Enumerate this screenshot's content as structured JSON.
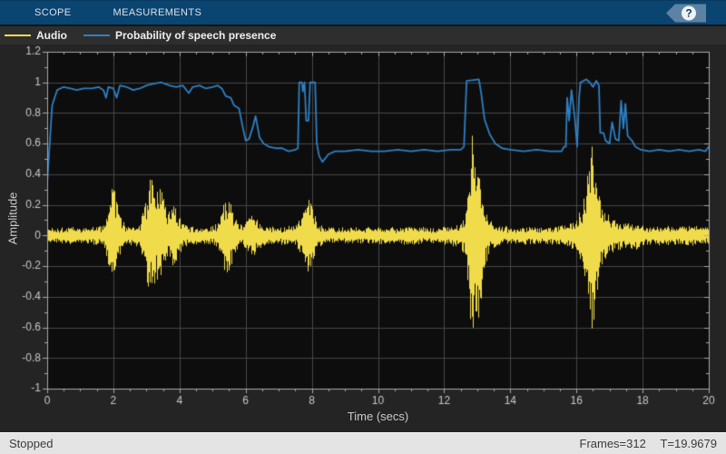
{
  "toolbar": {
    "tabs": [
      {
        "label": "SCOPE"
      },
      {
        "label": "MEASUREMENTS"
      }
    ],
    "help_icon": "?"
  },
  "legend": {
    "items": [
      {
        "label": "Audio",
        "color": "#f0dc4b"
      },
      {
        "label": "Probability of speech presence",
        "color": "#2e80c4"
      }
    ]
  },
  "status_bar": {
    "state": "Stopped",
    "frames": "Frames=312",
    "time": "T=19.9679"
  },
  "chart_data": {
    "type": "line",
    "xlabel": "Time (secs)",
    "ylabel": "Amplitude",
    "xlim": [
      0,
      20
    ],
    "ylim": [
      -1,
      1.2
    ],
    "grid": true,
    "legend_position": "top-left-bar",
    "x_ticks": [
      {
        "v": 0,
        "label": "0"
      },
      {
        "v": 2,
        "label": "2"
      },
      {
        "v": 4,
        "label": "4"
      },
      {
        "v": 6,
        "label": "6"
      },
      {
        "v": 8,
        "label": "8"
      },
      {
        "v": 10,
        "label": "10"
      },
      {
        "v": 12,
        "label": "12"
      },
      {
        "v": 14,
        "label": "14"
      },
      {
        "v": 16,
        "label": "16"
      },
      {
        "v": 18,
        "label": "18"
      },
      {
        "v": 20,
        "label": "20"
      }
    ],
    "y_ticks": [
      {
        "v": -1,
        "label": "-1"
      },
      {
        "v": -0.8,
        "label": "-0.8"
      },
      {
        "v": -0.6,
        "label": "-0.6"
      },
      {
        "v": -0.4,
        "label": "-0.4"
      },
      {
        "v": -0.2,
        "label": "-0.2"
      },
      {
        "v": 0,
        "label": "0"
      },
      {
        "v": 0.2,
        "label": "0.2"
      },
      {
        "v": 0.4,
        "label": "0.4"
      },
      {
        "v": 0.6,
        "label": "0.6"
      },
      {
        "v": 0.8,
        "label": "0.8"
      },
      {
        "v": 1,
        "label": "1"
      },
      {
        "v": 1.2,
        "label": "1.2"
      }
    ],
    "x_minor_step": 0.5,
    "y_minor_step": 0.1,
    "colors": {
      "plot_bg": "#0d0d0d",
      "grid": "#474747",
      "axis_box": "#a9a9a9",
      "tick_label": "#c9c9c9"
    },
    "series": [
      {
        "name": "Audio",
        "color": "#f0dc4b",
        "render": "noise_envelope",
        "envelope": [
          [
            0,
            0.05
          ],
          [
            0.3,
            0.05
          ],
          [
            0.6,
            0.06
          ],
          [
            1.0,
            0.05
          ],
          [
            1.4,
            0.06
          ],
          [
            1.7,
            0.07
          ],
          [
            1.8,
            0.15
          ],
          [
            1.9,
            0.28
          ],
          [
            2.0,
            0.33
          ],
          [
            2.1,
            0.22
          ],
          [
            2.2,
            0.12
          ],
          [
            2.35,
            0.07
          ],
          [
            2.6,
            0.06
          ],
          [
            2.8,
            0.09
          ],
          [
            2.95,
            0.22
          ],
          [
            3.05,
            0.35
          ],
          [
            3.15,
            0.42
          ],
          [
            3.3,
            0.28
          ],
          [
            3.4,
            0.37
          ],
          [
            3.5,
            0.26
          ],
          [
            3.65,
            0.15
          ],
          [
            3.8,
            0.2
          ],
          [
            3.95,
            0.16
          ],
          [
            4.1,
            0.08
          ],
          [
            4.3,
            0.06
          ],
          [
            4.7,
            0.05
          ],
          [
            5.0,
            0.06
          ],
          [
            5.15,
            0.08
          ],
          [
            5.3,
            0.22
          ],
          [
            5.45,
            0.25
          ],
          [
            5.6,
            0.18
          ],
          [
            5.75,
            0.1
          ],
          [
            5.9,
            0.07
          ],
          [
            6.1,
            0.12
          ],
          [
            6.25,
            0.15
          ],
          [
            6.4,
            0.09
          ],
          [
            6.6,
            0.06
          ],
          [
            6.9,
            0.05
          ],
          [
            7.2,
            0.06
          ],
          [
            7.5,
            0.06
          ],
          [
            7.7,
            0.15
          ],
          [
            7.85,
            0.27
          ],
          [
            7.95,
            0.22
          ],
          [
            8.1,
            0.12
          ],
          [
            8.25,
            0.07
          ],
          [
            8.6,
            0.05
          ],
          [
            9.0,
            0.06
          ],
          [
            9.5,
            0.05
          ],
          [
            10.0,
            0.06
          ],
          [
            10.5,
            0.05
          ],
          [
            11.0,
            0.06
          ],
          [
            11.5,
            0.05
          ],
          [
            12.0,
            0.06
          ],
          [
            12.4,
            0.07
          ],
          [
            12.6,
            0.12
          ],
          [
            12.7,
            0.35
          ],
          [
            12.8,
            0.62
          ],
          [
            12.88,
            0.81
          ],
          [
            12.95,
            0.58
          ],
          [
            13.02,
            0.66
          ],
          [
            13.1,
            0.45
          ],
          [
            13.2,
            0.25
          ],
          [
            13.35,
            0.12
          ],
          [
            13.5,
            0.08
          ],
          [
            13.8,
            0.06
          ],
          [
            14.2,
            0.05
          ],
          [
            14.6,
            0.06
          ],
          [
            15.0,
            0.05
          ],
          [
            15.4,
            0.06
          ],
          [
            15.8,
            0.08
          ],
          [
            16.0,
            0.12
          ],
          [
            16.15,
            0.2
          ],
          [
            16.3,
            0.38
          ],
          [
            16.42,
            0.62
          ],
          [
            16.5,
            0.75
          ],
          [
            16.6,
            0.45
          ],
          [
            16.7,
            0.25
          ],
          [
            16.85,
            0.18
          ],
          [
            17.0,
            0.14
          ],
          [
            17.2,
            0.1
          ],
          [
            17.4,
            0.09
          ],
          [
            17.6,
            0.08
          ],
          [
            17.8,
            0.1
          ],
          [
            18.0,
            0.07
          ],
          [
            18.3,
            0.06
          ],
          [
            18.7,
            0.07
          ],
          [
            19.0,
            0.06
          ],
          [
            19.4,
            0.07
          ],
          [
            19.7,
            0.06
          ],
          [
            20.0,
            0.05
          ]
        ]
      },
      {
        "name": "Probability of speech presence",
        "color": "#2e80c4",
        "render": "line",
        "points": [
          [
            0,
            0.34
          ],
          [
            0.06,
            0.55
          ],
          [
            0.15,
            0.85
          ],
          [
            0.3,
            0.95
          ],
          [
            0.5,
            0.97
          ],
          [
            0.7,
            0.96
          ],
          [
            0.9,
            0.95
          ],
          [
            1.1,
            0.96
          ],
          [
            1.35,
            0.96
          ],
          [
            1.55,
            0.97
          ],
          [
            1.7,
            0.95
          ],
          [
            1.78,
            0.9
          ],
          [
            1.85,
            0.97
          ],
          [
            2.0,
            0.96
          ],
          [
            2.1,
            0.9
          ],
          [
            2.2,
            0.98
          ],
          [
            2.4,
            0.97
          ],
          [
            2.6,
            0.95
          ],
          [
            2.8,
            0.96
          ],
          [
            3.0,
            0.98
          ],
          [
            3.2,
            0.99
          ],
          [
            3.45,
            1.0
          ],
          [
            3.7,
            0.98
          ],
          [
            3.9,
            0.97
          ],
          [
            4.1,
            0.98
          ],
          [
            4.28,
            0.93
          ],
          [
            4.4,
            0.97
          ],
          [
            4.6,
            0.98
          ],
          [
            4.8,
            0.96
          ],
          [
            5.0,
            0.97
          ],
          [
            5.15,
            0.98
          ],
          [
            5.28,
            0.96
          ],
          [
            5.4,
            0.91
          ],
          [
            5.55,
            0.9
          ],
          [
            5.65,
            0.85
          ],
          [
            5.8,
            0.83
          ],
          [
            5.9,
            0.72
          ],
          [
            6.0,
            0.62
          ],
          [
            6.1,
            0.63
          ],
          [
            6.22,
            0.71
          ],
          [
            6.3,
            0.78
          ],
          [
            6.42,
            0.64
          ],
          [
            6.55,
            0.6
          ],
          [
            6.7,
            0.58
          ],
          [
            6.9,
            0.57
          ],
          [
            7.1,
            0.57
          ],
          [
            7.3,
            0.55
          ],
          [
            7.5,
            0.56
          ],
          [
            7.58,
            0.57
          ],
          [
            7.62,
            1.0
          ],
          [
            7.7,
            1.0
          ],
          [
            7.73,
            0.94
          ],
          [
            7.78,
            1.0
          ],
          [
            7.83,
            0.75
          ],
          [
            7.9,
            0.75
          ],
          [
            7.95,
            1.0
          ],
          [
            8.1,
            1.0
          ],
          [
            8.15,
            0.6
          ],
          [
            8.22,
            0.52
          ],
          [
            8.32,
            0.48
          ],
          [
            8.5,
            0.53
          ],
          [
            8.7,
            0.55
          ],
          [
            9.0,
            0.55
          ],
          [
            9.4,
            0.56
          ],
          [
            9.8,
            0.55
          ],
          [
            10.2,
            0.55
          ],
          [
            10.6,
            0.56
          ],
          [
            11.0,
            0.55
          ],
          [
            11.4,
            0.56
          ],
          [
            11.8,
            0.55
          ],
          [
            12.2,
            0.56
          ],
          [
            12.5,
            0.56
          ],
          [
            12.6,
            0.58
          ],
          [
            12.68,
            1.01
          ],
          [
            13.05,
            1.02
          ],
          [
            13.12,
            0.93
          ],
          [
            13.22,
            0.76
          ],
          [
            13.38,
            0.66
          ],
          [
            13.55,
            0.6
          ],
          [
            13.75,
            0.57
          ],
          [
            14.0,
            0.56
          ],
          [
            14.4,
            0.55
          ],
          [
            14.8,
            0.56
          ],
          [
            15.2,
            0.55
          ],
          [
            15.55,
            0.55
          ],
          [
            15.62,
            0.58
          ],
          [
            15.68,
            0.58
          ],
          [
            15.72,
            0.9
          ],
          [
            15.78,
            0.75
          ],
          [
            15.85,
            0.95
          ],
          [
            15.95,
            0.77
          ],
          [
            16.02,
            0.58
          ],
          [
            16.08,
            0.9
          ],
          [
            16.12,
            1.0
          ],
          [
            16.3,
            1.02
          ],
          [
            16.4,
            1.0
          ],
          [
            16.5,
            0.97
          ],
          [
            16.6,
            1.01
          ],
          [
            16.68,
            0.98
          ],
          [
            16.72,
            0.67
          ],
          [
            16.82,
            0.67
          ],
          [
            16.88,
            0.62
          ],
          [
            17.0,
            0.6
          ],
          [
            17.08,
            0.74
          ],
          [
            17.18,
            0.63
          ],
          [
            17.28,
            0.62
          ],
          [
            17.35,
            0.88
          ],
          [
            17.42,
            0.7
          ],
          [
            17.48,
            0.86
          ],
          [
            17.55,
            0.65
          ],
          [
            17.68,
            0.62
          ],
          [
            17.78,
            0.58
          ],
          [
            17.95,
            0.56
          ],
          [
            18.2,
            0.55
          ],
          [
            18.5,
            0.56
          ],
          [
            18.8,
            0.55
          ],
          [
            19.1,
            0.56
          ],
          [
            19.4,
            0.55
          ],
          [
            19.7,
            0.56
          ],
          [
            19.9,
            0.55
          ],
          [
            20.0,
            0.58
          ]
        ]
      }
    ]
  }
}
